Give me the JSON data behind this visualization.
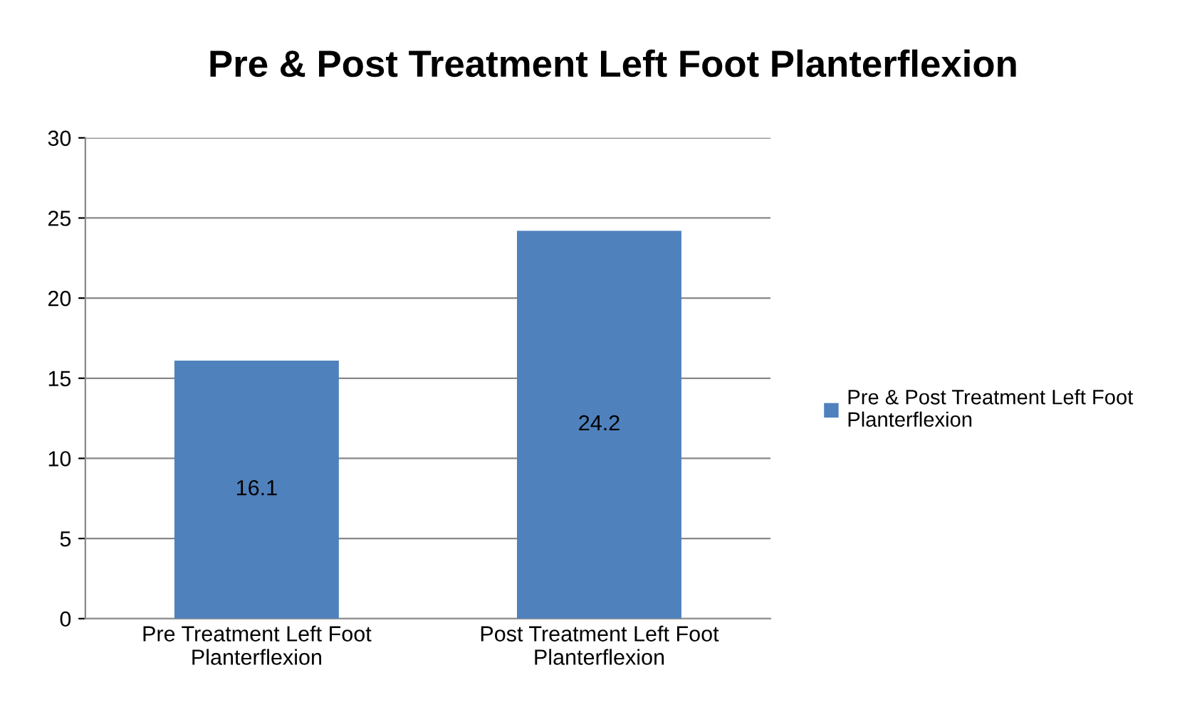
{
  "chart_data": {
    "type": "bar",
    "title": "Pre & Post Treatment Left Foot Planterflexion",
    "categories": [
      "Pre Treatment Left Foot Planterflexion",
      "Post Treatment Left Foot Planterflexion"
    ],
    "series": [
      {
        "name": "Pre & Post Treatment Left Foot Planterflexion",
        "color": "#4f81bd",
        "values": [
          16.1,
          24.2
        ]
      }
    ],
    "ylim": [
      0,
      30
    ],
    "yticks": [
      0,
      5,
      10,
      15,
      20,
      25,
      30
    ],
    "grid": "y",
    "legend": "right",
    "data_labels": true
  }
}
